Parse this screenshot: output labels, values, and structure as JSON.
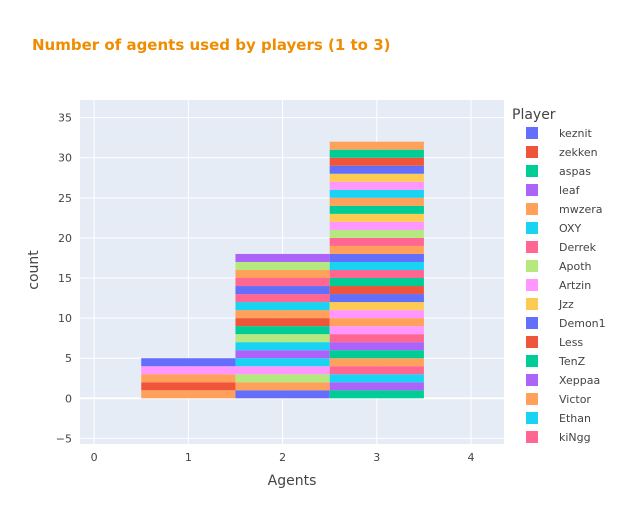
{
  "chart_data": {
    "type": "bar",
    "stacked": true,
    "title": "Number of agents used by players (1 to 3)",
    "xlabel": "Agents",
    "ylabel": "count",
    "xlim": [
      -0.15,
      4.35
    ],
    "ylim": [
      -5.7,
      37.2
    ],
    "x_ticks": [
      0,
      1,
      2,
      3,
      4
    ],
    "y_ticks": [
      -5,
      0,
      5,
      10,
      15,
      20,
      25,
      30,
      35
    ],
    "legend_title": "Player",
    "legend_position": "right",
    "bin_width": 1,
    "colorway": [
      "#636efa",
      "#EF553B",
      "#00cc96",
      "#ab63fa",
      "#FFA15A",
      "#19d3f3",
      "#FF6692",
      "#B6E880",
      "#FF97FF",
      "#FECB52"
    ],
    "players": [
      "keznit",
      "zekken",
      "aspas",
      "leaf",
      "mwzera",
      "OXY",
      "Derrek",
      "Apoth",
      "Artzin",
      "Jzz",
      "Demon1",
      "Less",
      "TenZ",
      "Xeppaa",
      "Victor",
      "Ethan",
      "kiNgg"
    ],
    "bins": [
      {
        "x": 1,
        "segments": [
          {
            "player": "mwzera",
            "value": 1
          },
          {
            "player": "zekken",
            "value": 1
          },
          {
            "player": "mwzera",
            "value": 1
          },
          {
            "player": "Artzin",
            "value": 1
          },
          {
            "player": "Demon1",
            "value": 1
          }
        ]
      },
      {
        "x": 2,
        "segments": [
          {
            "player": "keznit",
            "value": 1
          },
          {
            "player": "mwzera",
            "value": 1
          },
          {
            "player": "Apoth",
            "value": 1
          },
          {
            "player": "Artzin",
            "value": 1
          },
          {
            "player": "OXY",
            "value": 1
          },
          {
            "player": "leaf",
            "value": 1
          },
          {
            "player": "OXY",
            "value": 1
          },
          {
            "player": "Apoth",
            "value": 1
          },
          {
            "player": "aspas",
            "value": 1
          },
          {
            "player": "zekken",
            "value": 1
          },
          {
            "player": "mwzera",
            "value": 1
          },
          {
            "player": "OXY",
            "value": 1
          },
          {
            "player": "Derrek",
            "value": 1
          },
          {
            "player": "keznit",
            "value": 1
          },
          {
            "player": "Derrek",
            "value": 1
          },
          {
            "player": "mwzera",
            "value": 1
          },
          {
            "player": "Apoth",
            "value": 1
          },
          {
            "player": "leaf",
            "value": 1
          }
        ]
      },
      {
        "x": 3,
        "segments": [
          {
            "player": "aspas",
            "value": 1
          },
          {
            "player": "leaf",
            "value": 1
          },
          {
            "player": "OXY",
            "value": 1
          },
          {
            "player": "Derrek",
            "value": 1
          },
          {
            "player": "mwzera",
            "value": 1
          },
          {
            "player": "aspas",
            "value": 1
          },
          {
            "player": "leaf",
            "value": 1
          },
          {
            "player": "Derrek",
            "value": 1
          },
          {
            "player": "Artzin",
            "value": 1
          },
          {
            "player": "mwzera",
            "value": 1
          },
          {
            "player": "Artzin",
            "value": 1
          },
          {
            "player": "Jzz",
            "value": 1
          },
          {
            "player": "keznit",
            "value": 1
          },
          {
            "player": "zekken",
            "value": 1
          },
          {
            "player": "aspas",
            "value": 1
          },
          {
            "player": "Derrek",
            "value": 1
          },
          {
            "player": "OXY",
            "value": 1
          },
          {
            "player": "keznit",
            "value": 1
          },
          {
            "player": "mwzera",
            "value": 1
          },
          {
            "player": "Derrek",
            "value": 1
          },
          {
            "player": "Apoth",
            "value": 1
          },
          {
            "player": "Artzin",
            "value": 1
          },
          {
            "player": "Jzz",
            "value": 1
          },
          {
            "player": "aspas",
            "value": 1
          },
          {
            "player": "mwzera",
            "value": 1
          },
          {
            "player": "OXY",
            "value": 1
          },
          {
            "player": "Artzin",
            "value": 1
          },
          {
            "player": "Jzz",
            "value": 1
          },
          {
            "player": "keznit",
            "value": 1
          },
          {
            "player": "zekken",
            "value": 1
          },
          {
            "player": "aspas",
            "value": 1
          },
          {
            "player": "mwzera",
            "value": 1
          }
        ]
      }
    ]
  }
}
